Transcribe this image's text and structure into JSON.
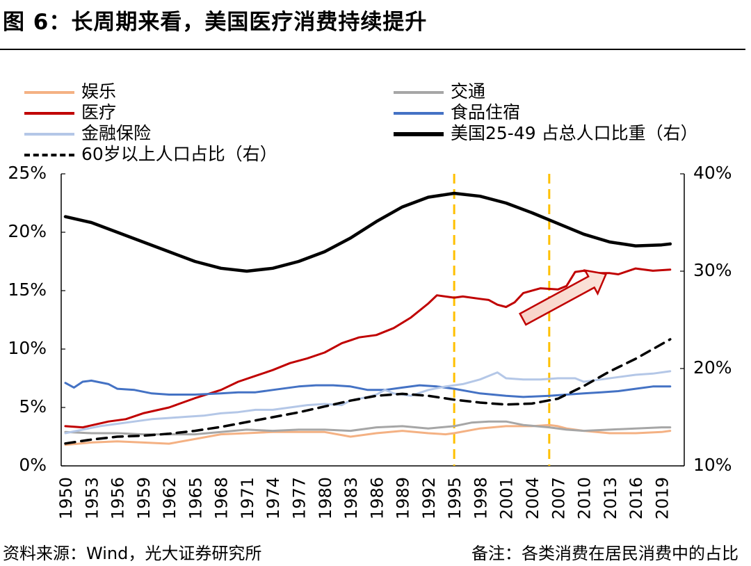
{
  "figure": {
    "title": "图 6：长周期来看，美国医疗消费持续提升",
    "source": "资料来源：Wind，光大证券研究所",
    "note": "备注：各类消费在居民消费中的占比"
  },
  "chart_data": {
    "type": "line",
    "title": "长周期来看，美国医疗消费持续提升",
    "x_tick_labels": [
      "1950",
      "1953",
      "1956",
      "1959",
      "1962",
      "1965",
      "1968",
      "1971",
      "1974",
      "1977",
      "1980",
      "1983",
      "1986",
      "1989",
      "1992",
      "1995",
      "1998",
      "2001",
      "2004",
      "2007",
      "2010",
      "2013",
      "2016",
      "2019"
    ],
    "y_left": {
      "ticks": [
        "0%",
        "5%",
        "10%",
        "15%",
        "20%",
        "25%"
      ],
      "range": [
        0,
        25
      ],
      "unit": "%"
    },
    "y_right": {
      "ticks": [
        "10%",
        "20%",
        "30%",
        "40%"
      ],
      "range": [
        10,
        40
      ],
      "unit": "%"
    },
    "vlines": [
      1995,
      2006
    ],
    "legend": [
      "娱乐",
      "交通",
      "医疗",
      "食品住宿",
      "金融保险",
      "美国25-49 占总人口比重（右）",
      "60岁以上人口占比（右）"
    ],
    "series": [
      {
        "name": "娱乐",
        "axis": "left",
        "color": "#F4B183",
        "style": "solid",
        "width": 3,
        "points": [
          [
            1950,
            1.8
          ],
          [
            1953,
            2.0
          ],
          [
            1956,
            2.1
          ],
          [
            1959,
            2.0
          ],
          [
            1962,
            1.9
          ],
          [
            1965,
            2.3
          ],
          [
            1968,
            2.7
          ],
          [
            1971,
            2.8
          ],
          [
            1974,
            2.9
          ],
          [
            1977,
            2.9
          ],
          [
            1980,
            2.9
          ],
          [
            1983,
            2.5
          ],
          [
            1986,
            2.8
          ],
          [
            1989,
            3.0
          ],
          [
            1992,
            2.8
          ],
          [
            1994,
            2.7
          ],
          [
            1995,
            2.8
          ],
          [
            1998,
            3.2
          ],
          [
            2001,
            3.4
          ],
          [
            2004,
            3.4
          ],
          [
            2006,
            3.5
          ],
          [
            2007,
            3.4
          ],
          [
            2008,
            3.2
          ],
          [
            2010,
            3.0
          ],
          [
            2013,
            2.8
          ],
          [
            2016,
            2.8
          ],
          [
            2019,
            2.9
          ],
          [
            2020,
            3.0
          ]
        ]
      },
      {
        "name": "交通",
        "axis": "left",
        "color": "#A6A6A6",
        "style": "solid",
        "width": 3,
        "points": [
          [
            1950,
            2.9
          ],
          [
            1953,
            2.8
          ],
          [
            1956,
            2.8
          ],
          [
            1959,
            2.7
          ],
          [
            1962,
            2.7
          ],
          [
            1965,
            2.7
          ],
          [
            1968,
            2.9
          ],
          [
            1971,
            3.1
          ],
          [
            1974,
            3.0
          ],
          [
            1977,
            3.1
          ],
          [
            1980,
            3.1
          ],
          [
            1983,
            3.0
          ],
          [
            1986,
            3.3
          ],
          [
            1989,
            3.4
          ],
          [
            1992,
            3.2
          ],
          [
            1995,
            3.4
          ],
          [
            1997,
            3.7
          ],
          [
            1999,
            3.8
          ],
          [
            2001,
            3.8
          ],
          [
            2003,
            3.5
          ],
          [
            2006,
            3.3
          ],
          [
            2008,
            3.1
          ],
          [
            2010,
            3.0
          ],
          [
            2013,
            3.1
          ],
          [
            2016,
            3.2
          ],
          [
            2019,
            3.3
          ],
          [
            2020,
            3.3
          ]
        ]
      },
      {
        "name": "医疗",
        "axis": "left",
        "color": "#C00000",
        "style": "solid",
        "width": 3,
        "points": [
          [
            1950,
            3.4
          ],
          [
            1952,
            3.3
          ],
          [
            1955,
            3.8
          ],
          [
            1957,
            4.0
          ],
          [
            1959,
            4.5
          ],
          [
            1962,
            5.0
          ],
          [
            1965,
            5.8
          ],
          [
            1968,
            6.5
          ],
          [
            1970,
            7.2
          ],
          [
            1972,
            7.7
          ],
          [
            1974,
            8.2
          ],
          [
            1976,
            8.8
          ],
          [
            1978,
            9.2
          ],
          [
            1980,
            9.7
          ],
          [
            1982,
            10.5
          ],
          [
            1984,
            11.0
          ],
          [
            1986,
            11.2
          ],
          [
            1988,
            11.8
          ],
          [
            1990,
            12.7
          ],
          [
            1992,
            13.9
          ],
          [
            1993,
            14.6
          ],
          [
            1995,
            14.4
          ],
          [
            1996,
            14.5
          ],
          [
            1998,
            14.3
          ],
          [
            1999,
            14.2
          ],
          [
            2000,
            13.8
          ],
          [
            2001,
            13.6
          ],
          [
            2002,
            14.0
          ],
          [
            2003,
            14.8
          ],
          [
            2005,
            15.2
          ],
          [
            2007,
            15.1
          ],
          [
            2008,
            15.4
          ],
          [
            2009,
            16.6
          ],
          [
            2010,
            16.7
          ],
          [
            2011,
            16.5
          ],
          [
            2013,
            16.5
          ],
          [
            2014,
            16.4
          ],
          [
            2016,
            16.9
          ],
          [
            2018,
            16.7
          ],
          [
            2020,
            16.8
          ]
        ]
      },
      {
        "name": "食品住宿",
        "axis": "left",
        "color": "#4472C4",
        "style": "solid",
        "width": 3,
        "points": [
          [
            1950,
            7.1
          ],
          [
            1951,
            6.7
          ],
          [
            1952,
            7.2
          ],
          [
            1953,
            7.3
          ],
          [
            1955,
            7.0
          ],
          [
            1956,
            6.6
          ],
          [
            1958,
            6.5
          ],
          [
            1960,
            6.2
          ],
          [
            1962,
            6.1
          ],
          [
            1965,
            6.1
          ],
          [
            1968,
            6.2
          ],
          [
            1970,
            6.3
          ],
          [
            1972,
            6.3
          ],
          [
            1974,
            6.5
          ],
          [
            1977,
            6.8
          ],
          [
            1979,
            6.9
          ],
          [
            1981,
            6.9
          ],
          [
            1983,
            6.8
          ],
          [
            1985,
            6.5
          ],
          [
            1987,
            6.5
          ],
          [
            1989,
            6.7
          ],
          [
            1991,
            6.9
          ],
          [
            1993,
            6.8
          ],
          [
            1995,
            6.6
          ],
          [
            1998,
            6.2
          ],
          [
            2001,
            6.0
          ],
          [
            2003,
            5.9
          ],
          [
            2006,
            6.0
          ],
          [
            2008,
            6.1
          ],
          [
            2010,
            6.2
          ],
          [
            2012,
            6.3
          ],
          [
            2014,
            6.4
          ],
          [
            2016,
            6.6
          ],
          [
            2018,
            6.8
          ],
          [
            2020,
            6.8
          ]
        ]
      },
      {
        "name": "金融保险",
        "axis": "left",
        "color": "#B4C7E7",
        "style": "solid",
        "width": 3,
        "points": [
          [
            1950,
            2.8
          ],
          [
            1952,
            3.1
          ],
          [
            1954,
            3.4
          ],
          [
            1956,
            3.6
          ],
          [
            1958,
            3.8
          ],
          [
            1960,
            4.0
          ],
          [
            1962,
            4.1
          ],
          [
            1964,
            4.2
          ],
          [
            1966,
            4.3
          ],
          [
            1968,
            4.5
          ],
          [
            1970,
            4.6
          ],
          [
            1972,
            4.8
          ],
          [
            1974,
            4.8
          ],
          [
            1976,
            5.0
          ],
          [
            1978,
            5.2
          ],
          [
            1980,
            5.3
          ],
          [
            1982,
            5.2
          ],
          [
            1983,
            5.6
          ],
          [
            1985,
            5.9
          ],
          [
            1986,
            6.1
          ],
          [
            1987,
            6.5
          ],
          [
            1988,
            6.2
          ],
          [
            1990,
            6.0
          ],
          [
            1992,
            6.5
          ],
          [
            1994,
            6.8
          ],
          [
            1996,
            7.0
          ],
          [
            1998,
            7.4
          ],
          [
            1999,
            7.7
          ],
          [
            2000,
            8.0
          ],
          [
            2001,
            7.5
          ],
          [
            2003,
            7.4
          ],
          [
            2005,
            7.4
          ],
          [
            2007,
            7.5
          ],
          [
            2009,
            7.5
          ],
          [
            2010,
            7.2
          ],
          [
            2012,
            7.4
          ],
          [
            2014,
            7.6
          ],
          [
            2016,
            7.8
          ],
          [
            2018,
            7.9
          ],
          [
            2020,
            8.1
          ]
        ]
      },
      {
        "name": "美国25-49 占总人口比重（右）",
        "axis": "right",
        "color": "#000000",
        "style": "solid",
        "width": 4.5,
        "points": [
          [
            1950,
            35.6
          ],
          [
            1953,
            35.0
          ],
          [
            1956,
            34.0
          ],
          [
            1959,
            33.0
          ],
          [
            1962,
            32.0
          ],
          [
            1965,
            31.0
          ],
          [
            1968,
            30.3
          ],
          [
            1971,
            30.0
          ],
          [
            1974,
            30.3
          ],
          [
            1977,
            31.0
          ],
          [
            1980,
            32.0
          ],
          [
            1983,
            33.4
          ],
          [
            1986,
            35.1
          ],
          [
            1989,
            36.6
          ],
          [
            1992,
            37.6
          ],
          [
            1995,
            38.0
          ],
          [
            1998,
            37.7
          ],
          [
            2001,
            37.0
          ],
          [
            2004,
            36.0
          ],
          [
            2007,
            34.9
          ],
          [
            2010,
            33.8
          ],
          [
            2013,
            33.0
          ],
          [
            2016,
            32.6
          ],
          [
            2019,
            32.7
          ],
          [
            2020,
            32.8
          ]
        ]
      },
      {
        "name": "60岁以上人口占比（右）",
        "axis": "right",
        "color": "#000000",
        "style": "dashed",
        "width": 3.5,
        "points": [
          [
            1950,
            12.3
          ],
          [
            1953,
            12.7
          ],
          [
            1956,
            13.0
          ],
          [
            1959,
            13.1
          ],
          [
            1962,
            13.3
          ],
          [
            1965,
            13.6
          ],
          [
            1968,
            14.0
          ],
          [
            1971,
            14.5
          ],
          [
            1974,
            15.0
          ],
          [
            1977,
            15.5
          ],
          [
            1980,
            16.1
          ],
          [
            1983,
            16.7
          ],
          [
            1986,
            17.2
          ],
          [
            1989,
            17.4
          ],
          [
            1992,
            17.2
          ],
          [
            1995,
            16.8
          ],
          [
            1998,
            16.5
          ],
          [
            2001,
            16.3
          ],
          [
            2004,
            16.4
          ],
          [
            2007,
            16.9
          ],
          [
            2010,
            18.2
          ],
          [
            2013,
            19.7
          ],
          [
            2016,
            21.0
          ],
          [
            2019,
            22.5
          ],
          [
            2020,
            23.0
          ]
        ]
      }
    ]
  }
}
